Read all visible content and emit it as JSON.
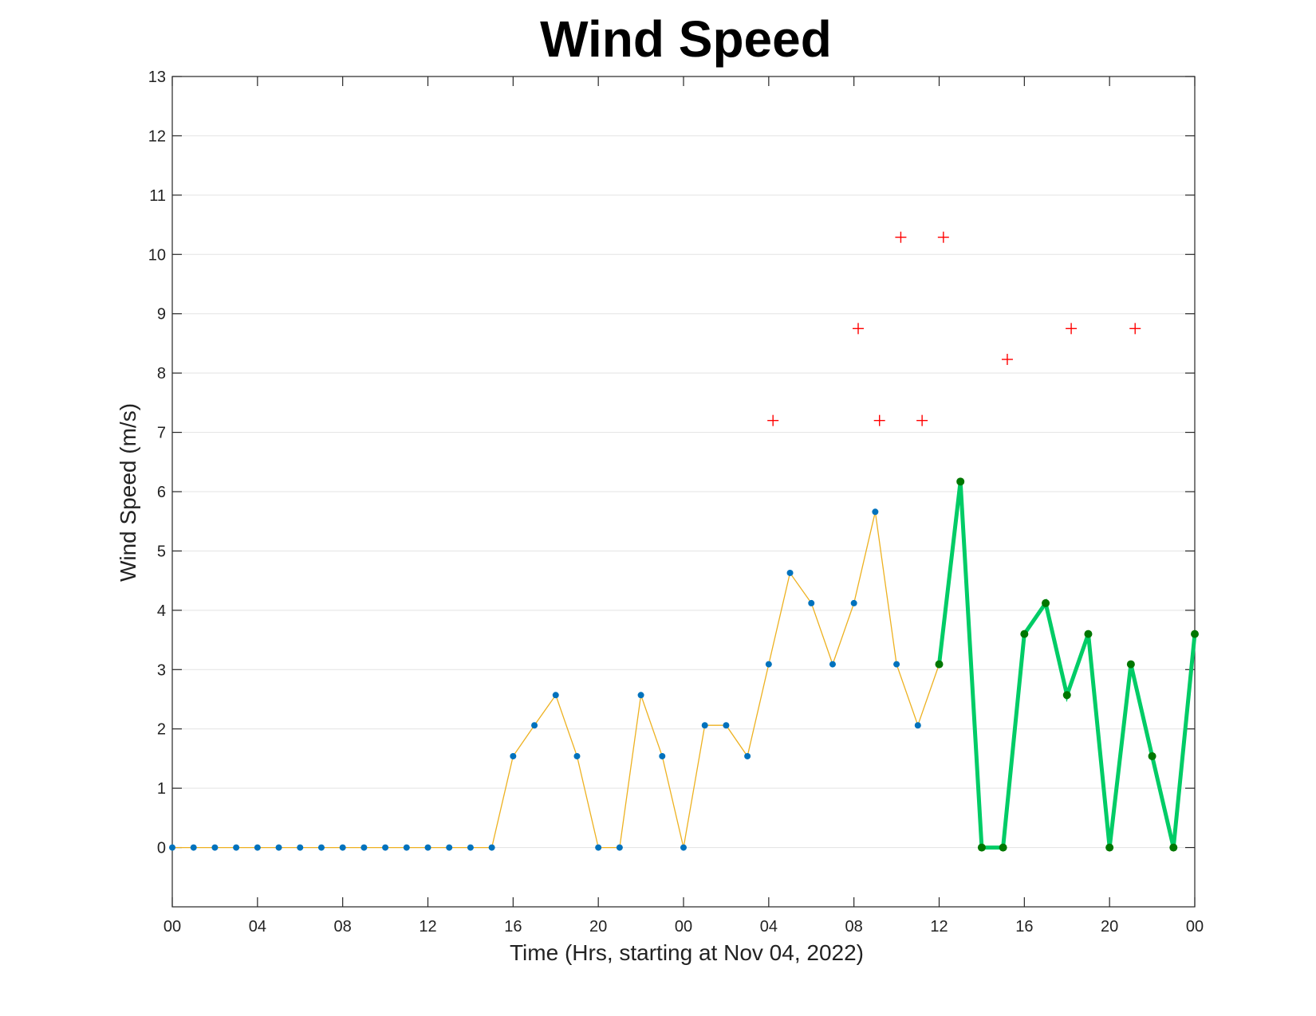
{
  "chart_data": {
    "type": "line",
    "title": "Wind Speed",
    "xlabel": "Time (Hrs, starting at Nov 04, 2022)",
    "ylabel": "Wind Speed (m/s)",
    "ylim": [
      -1,
      13
    ],
    "xlim": [
      0,
      48
    ],
    "y_ticks": [
      "0",
      "1",
      "2",
      "3",
      "4",
      "5",
      "6",
      "7",
      "8",
      "9",
      "10",
      "11",
      "12",
      "13"
    ],
    "x_ticks": [
      {
        "x": 0,
        "label": "00"
      },
      {
        "x": 4,
        "label": "04"
      },
      {
        "x": 8,
        "label": "08"
      },
      {
        "x": 12,
        "label": "12"
      },
      {
        "x": 16,
        "label": "16"
      },
      {
        "x": 20,
        "label": "20"
      },
      {
        "x": 24,
        "label": "00"
      },
      {
        "x": 28,
        "label": "04"
      },
      {
        "x": 32,
        "label": "08"
      },
      {
        "x": 36,
        "label": "12"
      },
      {
        "x": 40,
        "label": "16"
      },
      {
        "x": 44,
        "label": "20"
      },
      {
        "x": 48,
        "label": "00"
      }
    ],
    "grid": "horizontal",
    "series": [
      {
        "style": "thin-line-dots",
        "line_color": "#EDB120",
        "marker_color": "#0072BD",
        "x": [
          0,
          1,
          2,
          3,
          4,
          5,
          6,
          7,
          8,
          9,
          10,
          11,
          12,
          13,
          14,
          15,
          16,
          17,
          18,
          19,
          20,
          21,
          22,
          23,
          24,
          25,
          26,
          27,
          28,
          29,
          30,
          31,
          32,
          33,
          34,
          35,
          36
        ],
        "y": [
          0,
          0,
          0,
          0,
          0,
          0,
          0,
          0,
          0,
          0,
          0,
          0,
          0,
          0,
          0,
          0,
          1.54,
          2.06,
          2.57,
          1.54,
          0,
          0,
          2.57,
          1.54,
          0,
          2.06,
          2.06,
          1.54,
          3.09,
          4.63,
          4.12,
          3.09,
          4.12,
          5.66,
          3.09,
          2.06,
          3.09
        ]
      },
      {
        "style": "thick-line-dots",
        "line_color": "#00CC66",
        "marker_color": "#007700",
        "x": [
          36,
          37,
          38,
          39,
          40,
          41,
          42,
          43,
          44,
          45,
          46,
          47,
          48
        ],
        "y": [
          3.09,
          6.17,
          0,
          0,
          3.6,
          4.12,
          2.57,
          3.6,
          0,
          3.09,
          1.54,
          0,
          3.6
        ]
      },
      {
        "style": "markers-plus",
        "marker_color": "#FF0000",
        "x": [
          28.2,
          32.2,
          33.2,
          34.2,
          35.2,
          36.2,
          39.2,
          42.2,
          45.2
        ],
        "y": [
          7.2,
          8.75,
          7.2,
          10.29,
          7.2,
          10.29,
          8.23,
          8.75,
          8.75
        ]
      }
    ]
  }
}
